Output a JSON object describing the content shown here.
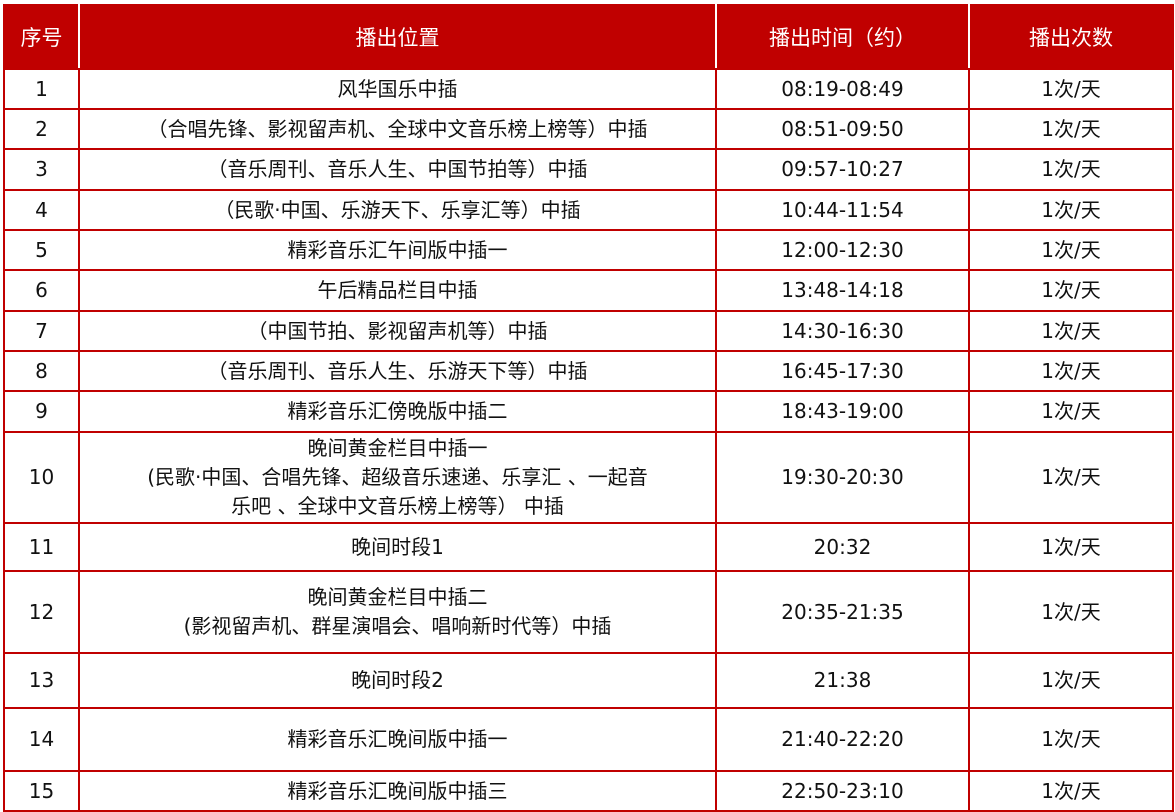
{
  "colors": {
    "header_bg": "#c00000",
    "border": "#c00000",
    "header_text": "#ffffff"
  },
  "headers": [
    "序号",
    "播出位置",
    "播出时间（约）",
    "播出次数"
  ],
  "rows": [
    {
      "no": "1",
      "location": [
        "风华国乐中插"
      ],
      "time": "08:19-08:49",
      "freq": "1次/天"
    },
    {
      "no": "2",
      "location": [
        "（合唱先锋、影视留声机、全球中文音乐榜上榜等）中插"
      ],
      "time": "08:51-09:50",
      "freq": "1次/天"
    },
    {
      "no": "3",
      "location": [
        "（音乐周刊、音乐人生、中国节拍等）中插"
      ],
      "time": "09:57-10:27",
      "freq": "1次/天"
    },
    {
      "no": "4",
      "location": [
        "（民歌·中国、乐游天下、乐享汇等）中插"
      ],
      "time": "10:44-11:54",
      "freq": "1次/天"
    },
    {
      "no": "5",
      "location": [
        "精彩音乐汇午间版中插一"
      ],
      "time": "12:00-12:30",
      "freq": "1次/天"
    },
    {
      "no": "6",
      "location": [
        "午后精品栏目中插"
      ],
      "time": "13:48-14:18",
      "freq": "1次/天"
    },
    {
      "no": "7",
      "location": [
        "（中国节拍、影视留声机等）中插"
      ],
      "time": "14:30-16:30",
      "freq": "1次/天"
    },
    {
      "no": "8",
      "location": [
        "（音乐周刊、音乐人生、乐游天下等）中插"
      ],
      "time": "16:45-17:30",
      "freq": "1次/天"
    },
    {
      "no": "9",
      "location": [
        "精彩音乐汇傍晚版中插二"
      ],
      "time": "18:43-19:00",
      "freq": "1次/天"
    },
    {
      "no": "10",
      "location": [
        "晚间黄金栏目中插一",
        "(民歌·中国、合唱先锋、超级音乐速递、乐享汇 、一起音",
        "乐吧 、全球中文音乐榜上榜等） 中插"
      ],
      "time": "19:30-20:30",
      "freq": "1次/天"
    },
    {
      "no": "11",
      "location": [
        "晚间时段1"
      ],
      "time": "20:32",
      "freq": "1次/天"
    },
    {
      "no": "12",
      "location": [
        "晚间黄金栏目中插二",
        "(影视留声机、群星演唱会、唱响新时代等）中插"
      ],
      "time": "20:35-21:35",
      "freq": "1次/天"
    },
    {
      "no": "13",
      "location": [
        "晚间时段2"
      ],
      "time": "21:38",
      "freq": "1次/天"
    },
    {
      "no": "14",
      "location": [
        "精彩音乐汇晚间版中插一"
      ],
      "time": "21:40-22:20",
      "freq": "1次/天"
    },
    {
      "no": "15",
      "location": [
        "精彩音乐汇晚间版中插三"
      ],
      "time": "22:50-23:10",
      "freq": "1次/天"
    }
  ]
}
